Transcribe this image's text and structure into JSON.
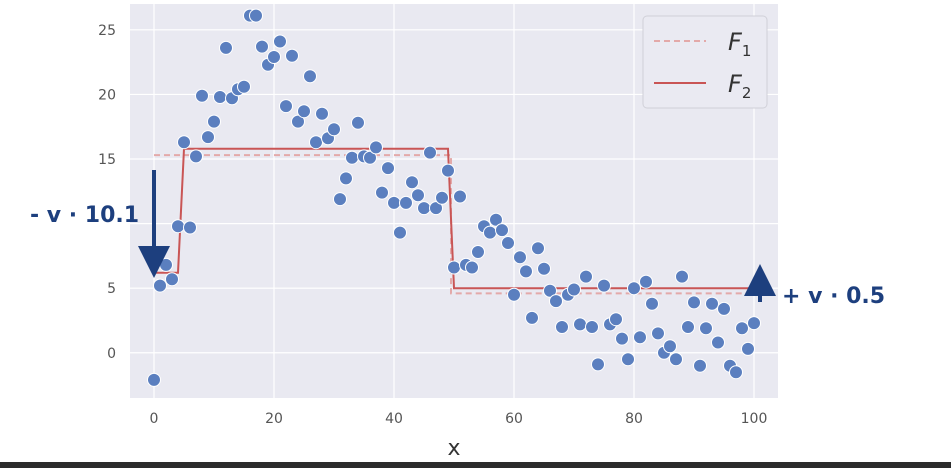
{
  "chart_data": {
    "type": "scatter",
    "title": "",
    "xlabel": "x",
    "ylabel": "",
    "xlim": [
      -4,
      104
    ],
    "ylim": [
      -3.5,
      27
    ],
    "x_ticks": [
      "0",
      "20",
      "40",
      "60",
      "80",
      "100"
    ],
    "x_tick_values": [
      0,
      20,
      40,
      60,
      80,
      100
    ],
    "y_ticks": [
      "0",
      "5",
      "15",
      "20",
      "25"
    ],
    "y_tick_values": [
      0,
      5,
      15,
      20,
      25
    ],
    "grid": true,
    "legend": "top-right",
    "colors": {
      "background": "#e9e9f1",
      "grid": "#ffffff",
      "points": "#5b7fbf",
      "f1": "#e3a9a9",
      "f2": "#c95555",
      "annotation": "#1d3f7e"
    },
    "series": [
      {
        "name": "F1",
        "kind": "line",
        "dashed": true,
        "x": [
          0,
          49.5,
          49.5,
          100
        ],
        "y": [
          15.3,
          15.3,
          4.6,
          4.6
        ]
      },
      {
        "name": "F2",
        "kind": "line",
        "dashed": false,
        "x": [
          0,
          4,
          5,
          49,
          50,
          100
        ],
        "y": [
          6.2,
          6.2,
          15.8,
          15.8,
          5.0,
          5.0
        ]
      },
      {
        "name": "data",
        "kind": "scatter",
        "x": [
          0,
          1,
          2,
          3,
          4,
          5,
          6,
          7,
          8,
          9,
          10,
          11,
          12,
          13,
          14,
          15,
          16,
          17,
          18,
          19,
          20,
          21,
          22,
          23,
          24,
          25,
          26,
          27,
          28,
          29,
          30,
          31,
          32,
          33,
          34,
          35,
          36,
          37,
          38,
          39,
          40,
          41,
          42,
          43,
          44,
          45,
          46,
          47,
          48,
          49,
          50,
          51,
          52,
          53,
          54,
          55,
          56,
          57,
          58,
          59,
          60,
          61,
          62,
          63,
          64,
          65,
          66,
          67,
          68,
          69,
          70,
          71,
          72,
          73,
          74,
          75,
          76,
          77,
          78,
          79,
          80,
          81,
          82,
          83,
          84,
          85,
          86,
          87,
          88,
          89,
          90,
          91,
          92,
          93,
          94,
          95,
          96,
          97,
          98,
          99,
          100
        ],
        "y": [
          -2.1,
          5.2,
          6.8,
          5.7,
          9.8,
          16.3,
          9.7,
          15.2,
          19.9,
          16.7,
          17.9,
          19.8,
          23.6,
          19.7,
          20.4,
          20.6,
          26.1,
          26.1,
          23.7,
          22.3,
          22.9,
          24.1,
          19.1,
          23.0,
          17.9,
          18.7,
          21.4,
          16.3,
          18.5,
          16.6,
          17.3,
          11.9,
          13.5,
          15.1,
          17.8,
          15.2,
          15.1,
          15.9,
          12.4,
          14.3,
          11.6,
          9.3,
          11.6,
          13.2,
          12.2,
          11.2,
          15.5,
          11.2,
          12.0,
          14.1,
          6.6,
          12.1,
          6.8,
          6.6,
          7.8,
          9.8,
          9.3,
          10.3,
          9.5,
          8.5,
          4.5,
          7.4,
          6.3,
          2.7,
          8.1,
          6.5,
          4.8,
          4.0,
          2.0,
          4.5,
          4.9,
          2.2,
          5.9,
          2.0,
          -0.9,
          5.2,
          2.2,
          2.6,
          1.1,
          -0.5,
          5.0,
          1.2,
          5.5,
          3.8,
          1.5,
          0.0,
          0.5,
          -0.5,
          5.9,
          2.0,
          3.9,
          -1.0,
          1.9,
          3.8,
          0.8,
          3.4,
          -1.0,
          -1.5,
          1.9,
          0.3,
          2.3
        ]
      }
    ],
    "legend_entries": [
      {
        "main": "F",
        "sub": "1"
      },
      {
        "main": "F",
        "sub": "2"
      }
    ],
    "annotations": [
      {
        "text": "- v · 10.1",
        "direction": "down"
      },
      {
        "text": "+ v · 0.5",
        "direction": "up"
      }
    ]
  }
}
